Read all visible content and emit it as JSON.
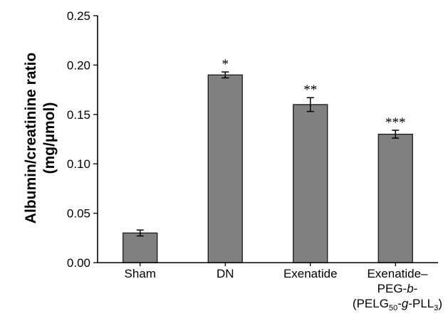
{
  "chart_data": {
    "type": "bar",
    "title": "",
    "xlabel": "",
    "ylabel": "Albumin/creatinine ratio",
    "ylabel_unit": "(mg/µmol)",
    "ylim": [
      0,
      0.25
    ],
    "yticks": [
      "0.00",
      "0.05",
      "0.10",
      "0.15",
      "0.20",
      "0.25"
    ],
    "categories": [
      "Sham",
      "DN",
      "Exenatide",
      "Exenatide–PEG-b-(PELG50-g-PLL3)"
    ],
    "category_label_parts": {
      "line1": "Exenatide–",
      "line2_pre": "PEG-",
      "line2_ital": "b",
      "line2_post": "-",
      "line3_a": "(PELG",
      "line3_sub1": "50",
      "line3_b": "-",
      "line3_ital": "g",
      "line3_c": "-PLL",
      "line3_sub2": "3",
      "line3_d": ")"
    },
    "values": [
      0.03,
      0.19,
      0.16,
      0.13
    ],
    "errors": [
      0.003,
      0.003,
      0.007,
      0.004
    ],
    "annotations": [
      "",
      "*",
      "**",
      "***"
    ],
    "grid": false,
    "bar_color": "#808080"
  }
}
